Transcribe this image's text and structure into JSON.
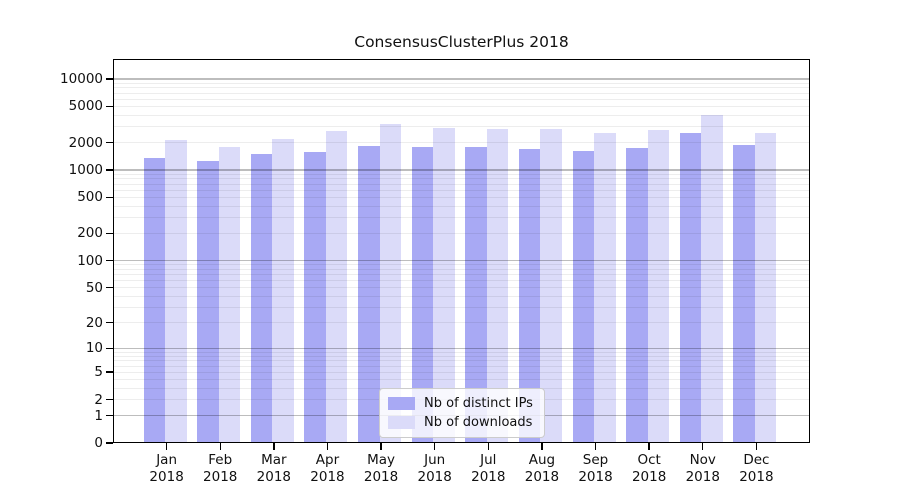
{
  "title": "ConsensusClusterPlus 2018",
  "chart_data": {
    "type": "bar",
    "title": "ConsensusClusterPlus 2018",
    "xlabel": "",
    "ylabel": "",
    "x_months": [
      "Jan",
      "Feb",
      "Mar",
      "Apr",
      "May",
      "Jun",
      "Jul",
      "Aug",
      "Sep",
      "Oct",
      "Nov",
      "Dec"
    ],
    "x_year": "2018",
    "series": [
      {
        "name": "Nb of distinct IPs",
        "color": "#a8a9f4",
        "values": [
          1370,
          1240,
          1490,
          1590,
          1840,
          1790,
          1790,
          1710,
          1630,
          1750,
          2580,
          1870
        ]
      },
      {
        "name": "Nb of downloads",
        "color": "#dbdbf9",
        "values": [
          2140,
          1810,
          2180,
          2670,
          3210,
          2880,
          2850,
          2800,
          2530,
          2750,
          4000,
          2570
        ]
      }
    ],
    "yticks": [
      0,
      1,
      2,
      5,
      10,
      20,
      50,
      100,
      200,
      500,
      1000,
      2000,
      5000,
      10000
    ],
    "scale": "log10(value+1)",
    "y_max": 16600,
    "grid": "horizontal major and minor log gridlines",
    "legend_position": "lower center",
    "colors": {
      "grid_major": "#bdbdbd",
      "grid_minor": "#ededed",
      "spine": "#000000",
      "text": "#111111",
      "background": "#ffffff"
    }
  }
}
